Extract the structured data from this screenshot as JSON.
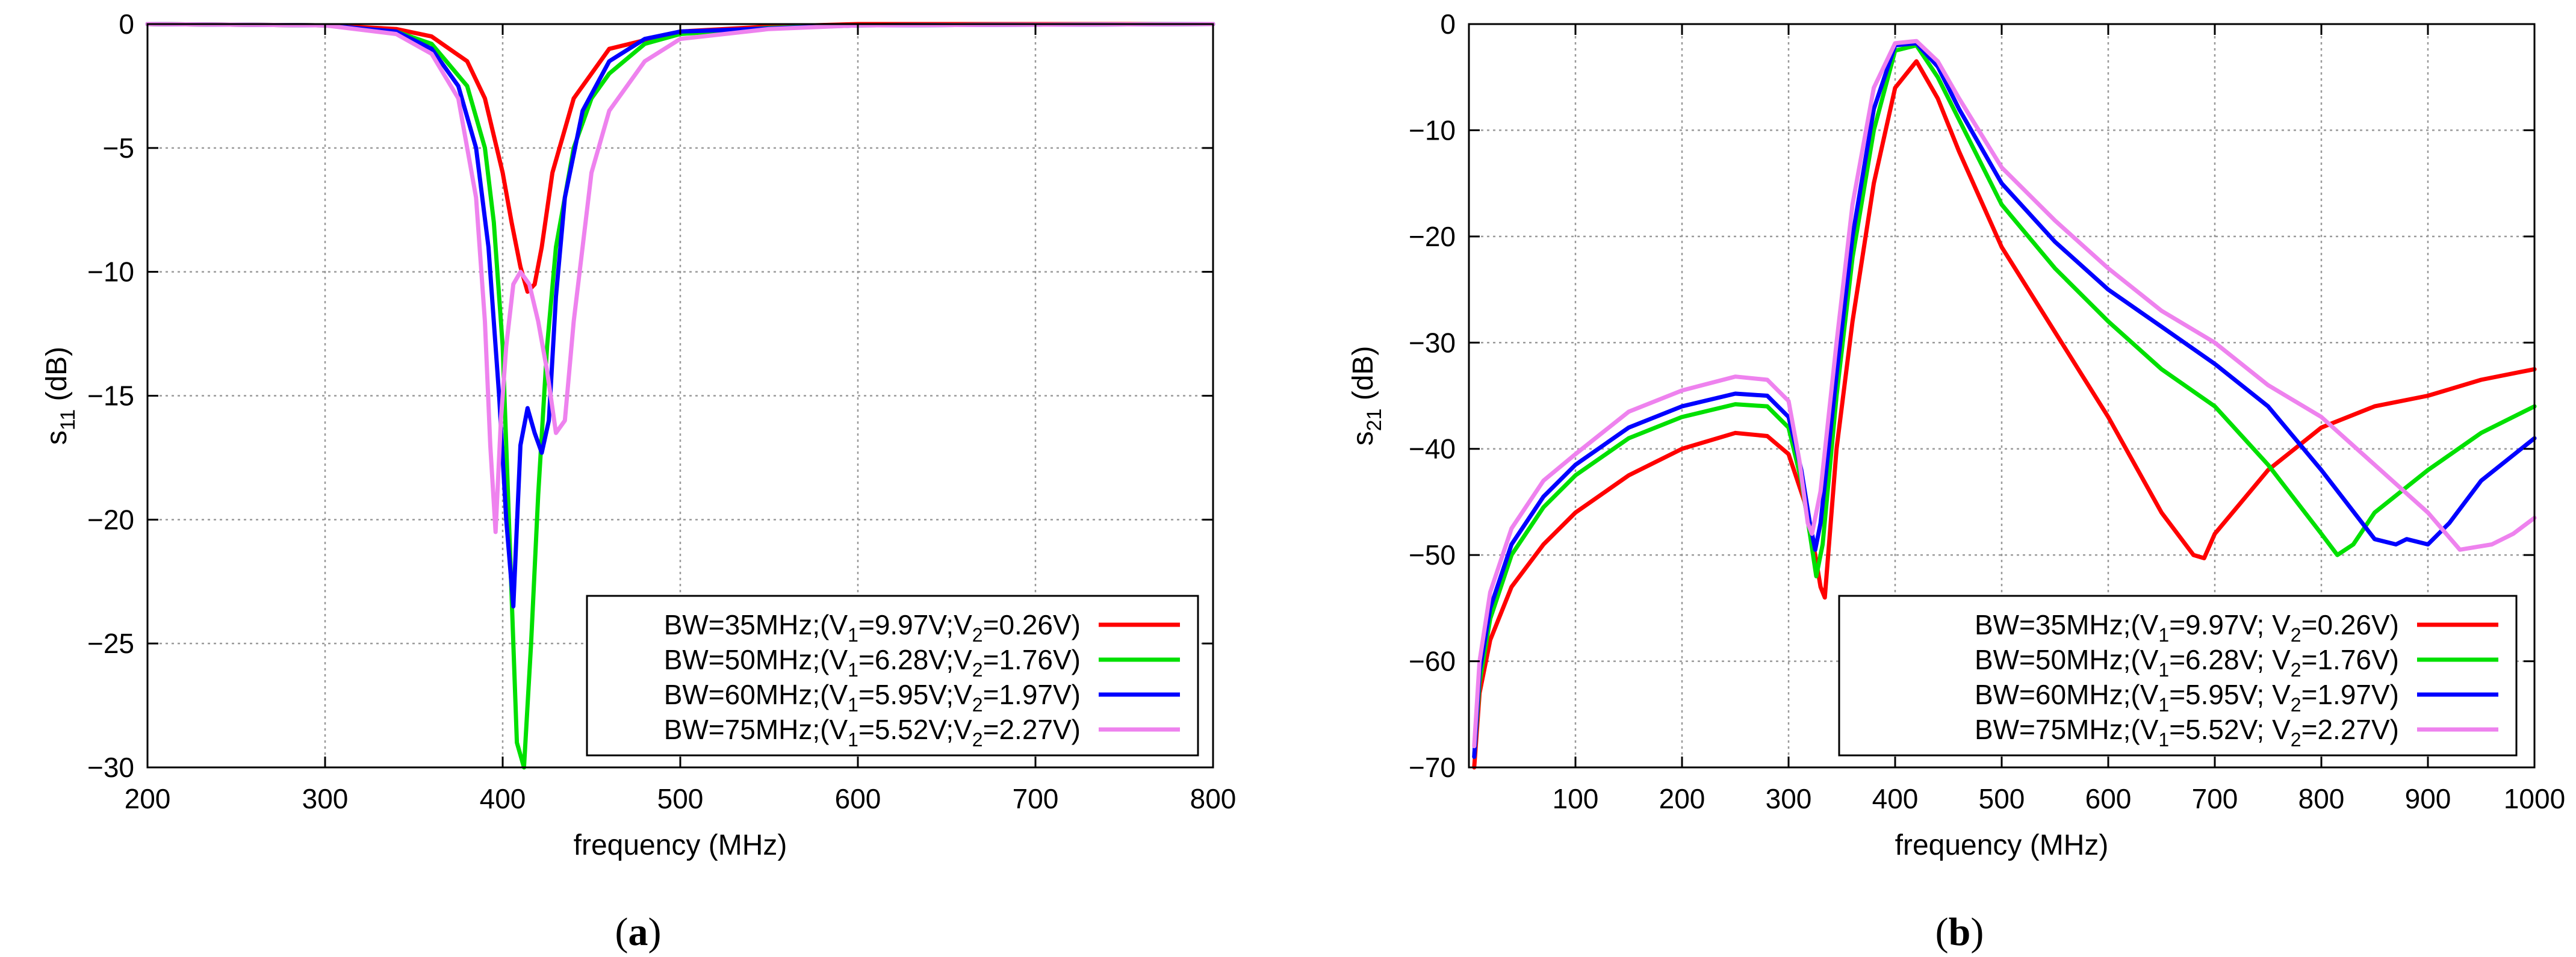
{
  "chart_data": [
    {
      "type": "line",
      "panel": "a",
      "caption_letter": "a",
      "xlabel": "frequency  (MHz)",
      "ylabel_main": "s",
      "ylabel_sub": "11",
      "ylabel_unit": " (dB)",
      "xlim": [
        200,
        800
      ],
      "ylim": [
        -30,
        0
      ],
      "xticks": [
        200,
        300,
        400,
        500,
        600,
        700,
        800
      ],
      "yticks": [
        0,
        -5,
        -10,
        -15,
        -20,
        -25,
        -30
      ],
      "ytick_labels": [
        "0",
        "−5",
        "−10",
        "−15",
        "−20",
        "−25",
        "−30"
      ],
      "grid": true,
      "legend_position": "bottom-right",
      "series": [
        {
          "name": "BW=35MHz",
          "v1": "9.97V",
          "v2": "0.26V",
          "color": "#ff0000",
          "x": [
            200,
            300,
            340,
            360,
            380,
            390,
            400,
            405,
            410,
            414,
            418,
            422,
            428,
            440,
            460,
            500,
            550,
            600,
            800
          ],
          "y": [
            0,
            -0.05,
            -0.2,
            -0.5,
            -1.5,
            -3,
            -6,
            -8,
            -9.8,
            -10.8,
            -10.5,
            -9,
            -6,
            -3,
            -1,
            -0.3,
            -0.1,
            0,
            0
          ]
        },
        {
          "name": "BW=50MHz",
          "v1": "6.28V",
          "v2": "1.76V",
          "color": "#00e000",
          "x": [
            200,
            300,
            340,
            360,
            380,
            390,
            395,
            400,
            404,
            408,
            412,
            416,
            420,
            425,
            430,
            440,
            450,
            460,
            480,
            500,
            550,
            600,
            800
          ],
          "y": [
            0,
            -0.05,
            -0.3,
            -0.8,
            -2.5,
            -5,
            -8,
            -13,
            -21,
            -29,
            -30,
            -25,
            -19,
            -13,
            -9,
            -5,
            -3,
            -2,
            -0.8,
            -0.4,
            -0.15,
            -0.05,
            0
          ]
        },
        {
          "name": "BW=60MHz",
          "v1": "5.95V",
          "v2": "1.97V",
          "color": "#0000ff",
          "x": [
            200,
            300,
            340,
            360,
            375,
            385,
            392,
            398,
            402,
            406,
            410,
            414,
            418,
            422,
            426,
            430,
            435,
            445,
            460,
            480,
            500,
            600,
            800
          ],
          "y": [
            0,
            -0.05,
            -0.3,
            -1,
            -2.5,
            -5,
            -9,
            -15,
            -20,
            -23.5,
            -17,
            -15.5,
            -16.5,
            -17.3,
            -16,
            -11,
            -7,
            -3.5,
            -1.5,
            -0.6,
            -0.3,
            -0.05,
            0
          ]
        },
        {
          "name": "BW=75MHz",
          "v1": "5.52V",
          "v2": "2.27V",
          "color": "#ee82ee",
          "x": [
            200,
            300,
            340,
            360,
            375,
            385,
            390,
            393,
            396,
            399,
            402,
            406,
            410,
            415,
            420,
            425,
            430,
            435,
            440,
            450,
            460,
            480,
            500,
            550,
            600,
            800
          ],
          "y": [
            0,
            -0.05,
            -0.4,
            -1.2,
            -3,
            -7,
            -12,
            -17,
            -20.5,
            -16,
            -13,
            -10.5,
            -10,
            -10.5,
            -12,
            -14,
            -16.5,
            -16,
            -12,
            -6,
            -3.5,
            -1.5,
            -0.6,
            -0.2,
            -0.05,
            0
          ]
        }
      ]
    },
    {
      "type": "line",
      "panel": "b",
      "caption_letter": "b",
      "xlabel": "frequency  (MHz)",
      "ylabel_main": "s",
      "ylabel_sub": "21",
      "ylabel_unit": " (dB)",
      "xlim": [
        0,
        1000
      ],
      "ylim": [
        -70,
        0
      ],
      "xticks": [
        100,
        200,
        300,
        400,
        500,
        600,
        700,
        800,
        900,
        1000
      ],
      "yticks": [
        0,
        -10,
        -20,
        -30,
        -40,
        -50,
        -60,
        -70
      ],
      "ytick_labels": [
        "0",
        "−10",
        "−20",
        "−30",
        "−40",
        "−50",
        "−60",
        "−70"
      ],
      "grid": true,
      "legend_position": "bottom-right",
      "series": [
        {
          "name": "BW=35MHz",
          "v1": "9.97V",
          "v2": "0.26V",
          "color": "#ff0000",
          "x": [
            5,
            10,
            20,
            40,
            70,
            100,
            150,
            200,
            250,
            280,
            300,
            315,
            325,
            330,
            334,
            345,
            360,
            380,
            400,
            420,
            440,
            460,
            500,
            550,
            600,
            650,
            680,
            690,
            700,
            750,
            800,
            850,
            900,
            950,
            1000
          ],
          "y": [
            -70,
            -63,
            -58,
            -53,
            -49,
            -46,
            -42.5,
            -40,
            -38.5,
            -38.8,
            -40.5,
            -45,
            -50,
            -53,
            -54,
            -40,
            -28,
            -15,
            -6,
            -3.5,
            -7,
            -12,
            -21,
            -29,
            -37,
            -46,
            -50,
            -50.3,
            -48,
            -42,
            -38,
            -36,
            -35,
            -33.5,
            -32.5
          ]
        },
        {
          "name": "BW=50MHz",
          "v1": "6.28V",
          "v2": "1.76V",
          "color": "#00e000",
          "x": [
            5,
            10,
            20,
            40,
            70,
            100,
            150,
            200,
            250,
            280,
            300,
            312,
            320,
            326,
            332,
            345,
            360,
            380,
            400,
            420,
            440,
            460,
            500,
            550,
            600,
            650,
            700,
            750,
            800,
            815,
            830,
            850,
            900,
            950,
            1000
          ],
          "y": [
            -69,
            -62,
            -56,
            -50,
            -45.5,
            -42.5,
            -39,
            -37,
            -35.8,
            -36,
            -38,
            -43,
            -48,
            -52,
            -49,
            -35,
            -22,
            -10,
            -2.5,
            -2,
            -5,
            -9,
            -17,
            -23,
            -28,
            -32.5,
            -36,
            -41.5,
            -48,
            -50,
            -49,
            -46,
            -42,
            -38.5,
            -36
          ]
        },
        {
          "name": "BW=60MHz",
          "v1": "5.95V",
          "v2": "1.97V",
          "color": "#0000ff",
          "x": [
            5,
            10,
            20,
            40,
            70,
            100,
            150,
            200,
            250,
            280,
            300,
            312,
            320,
            325,
            330,
            345,
            360,
            380,
            400,
            420,
            440,
            460,
            500,
            550,
            600,
            650,
            700,
            750,
            800,
            850,
            870,
            880,
            900,
            920,
            950,
            1000
          ],
          "y": [
            -69,
            -61,
            -55,
            -49,
            -44.5,
            -41.5,
            -38,
            -36,
            -34.8,
            -35,
            -37,
            -42,
            -47,
            -49.5,
            -47,
            -33,
            -20,
            -8,
            -2,
            -1.8,
            -4,
            -8,
            -15,
            -20.5,
            -25,
            -28.5,
            -32,
            -36,
            -42,
            -48.5,
            -49,
            -48.5,
            -49,
            -47,
            -43,
            -39
          ]
        },
        {
          "name": "BW=75MHz",
          "v1": "5.52V",
          "v2": "2.27V",
          "color": "#ee82ee",
          "x": [
            5,
            10,
            20,
            40,
            70,
            100,
            150,
            200,
            250,
            280,
            300,
            310,
            318,
            322,
            330,
            345,
            360,
            380,
            400,
            420,
            440,
            460,
            500,
            550,
            600,
            650,
            700,
            750,
            800,
            850,
            900,
            930,
            960,
            980,
            1000
          ],
          "y": [
            -68,
            -60,
            -53.5,
            -47.5,
            -43,
            -40.5,
            -36.5,
            -34.5,
            -33.2,
            -33.5,
            -35.5,
            -41,
            -47,
            -48,
            -44,
            -30,
            -17,
            -6,
            -1.8,
            -1.6,
            -3.5,
            -7,
            -13.5,
            -18.5,
            -23,
            -27,
            -30,
            -34,
            -37,
            -41.5,
            -46,
            -49.5,
            -49,
            -48,
            -46.5
          ]
        }
      ]
    }
  ]
}
